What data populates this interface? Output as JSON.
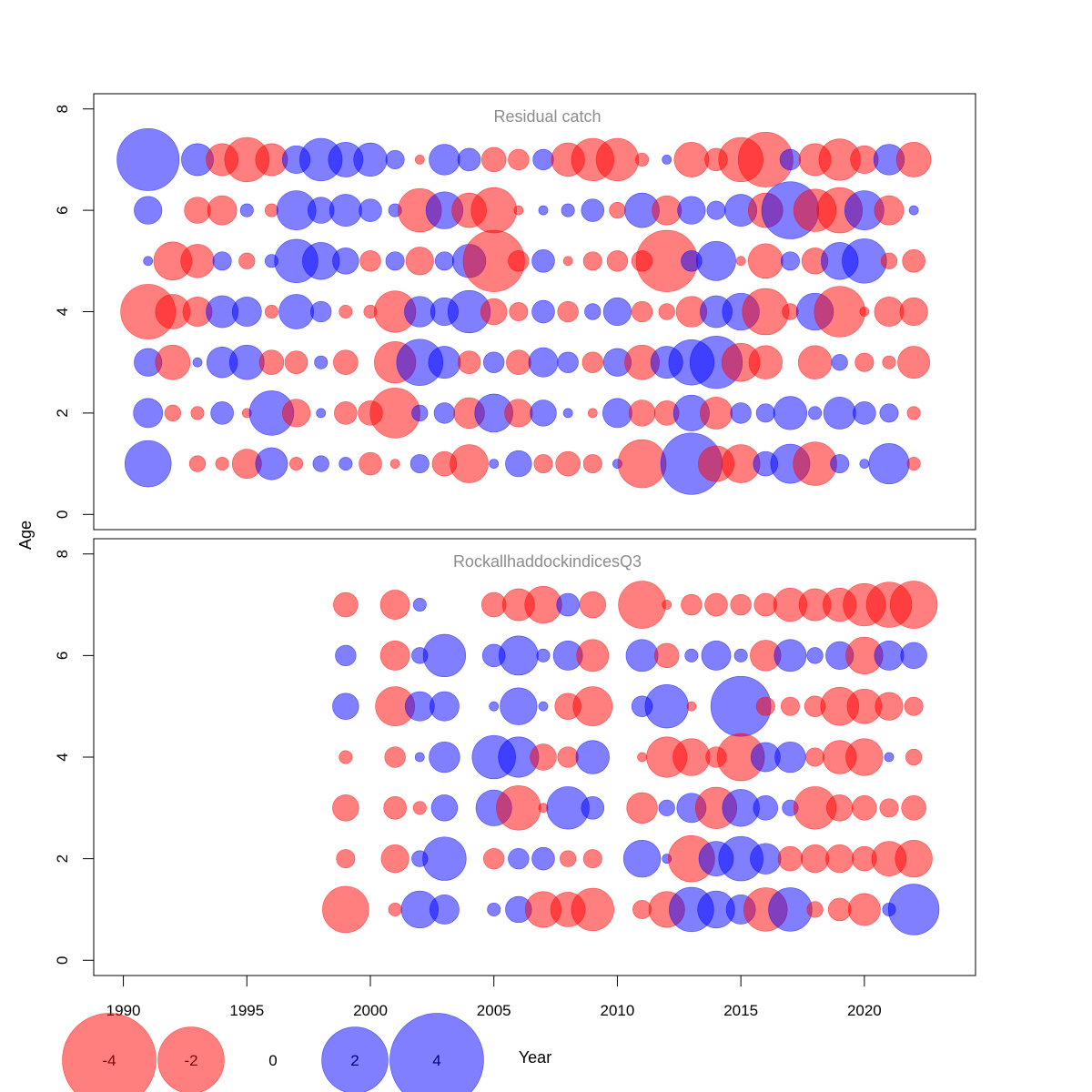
{
  "colors": {
    "negative": "#ff0000",
    "positive": "#0000ff",
    "bubble_opacity": 0.5,
    "panel_title": "#8c8c8c",
    "axis": "#000000"
  },
  "chart_data": {
    "type": "scatter",
    "subtype": "bubble",
    "xlabel": "Year",
    "ylabel": "Age",
    "xlim": [
      1988.8,
      2024.5
    ],
    "ylim": [
      -0.3,
      8.3
    ],
    "x_ticks": [
      1990,
      1995,
      2000,
      2005,
      2010,
      2015,
      2020
    ],
    "y_ticks": [
      0,
      2,
      4,
      6,
      8
    ],
    "legend": {
      "placement": "bottom",
      "entries": [
        {
          "label": "-4",
          "value": -4
        },
        {
          "label": "-2",
          "value": -2
        },
        {
          "label": "0",
          "value": 0
        },
        {
          "label": "2",
          "value": 2
        },
        {
          "label": "4",
          "value": 4
        }
      ],
      "xlabel_text": "Year"
    },
    "panels": [
      {
        "title": "Residual catch",
        "ages": [
          7,
          6,
          5,
          4,
          3,
          2,
          1
        ],
        "years": [
          1991,
          1992,
          1993,
          1994,
          1995,
          1996,
          1997,
          1998,
          1999,
          2000,
          2001,
          2002,
          2003,
          2004,
          2005,
          2006,
          2007,
          2008,
          2009,
          2010,
          2011,
          2012,
          2013,
          2014,
          2015,
          2016,
          2017,
          2018,
          2019,
          2020,
          2021,
          2022
        ],
        "residuals": [
          [
            4.5,
            0,
            1.2,
            -1.2,
            -2.3,
            -1.2,
            0.9,
            2.1,
            1.4,
            1.3,
            0.4,
            -0.1,
            1.1,
            0.6,
            -0.7,
            -0.5,
            0.5,
            -1.3,
            -2.1,
            -2.1,
            -0.2,
            0.1,
            -1.4,
            -0.6,
            -2.3,
            -3.5,
            0.5,
            -1.2,
            -2.0,
            -0.9,
            1.1,
            -1.4
          ],
          [
            0.9,
            0,
            -0.8,
            -1.0,
            0.2,
            -0.2,
            1.8,
            0.8,
            1.2,
            0.6,
            0.2,
            -2.2,
            1.6,
            -1.4,
            -2.4,
            -0.1,
            0.1,
            0.2,
            0.6,
            -0.3,
            1.4,
            -1.0,
            0.9,
            0.4,
            1.2,
            -1.4,
            3.8,
            -2.1,
            -2.4,
            1.8,
            -1.0,
            0.1
          ],
          [
            0.1,
            -1.7,
            -1.3,
            0.4,
            -0.3,
            0.2,
            2.2,
            1.6,
            0.8,
            -0.5,
            0.4,
            -0.9,
            0.4,
            1.3,
            -4.4,
            -0.5,
            0.6,
            -0.1,
            -0.4,
            -0.5,
            -0.5,
            -4.4,
            0.5,
            1.8,
            -0.1,
            -1.4,
            0.4,
            -0.8,
            1.6,
            2.3,
            -0.3,
            -0.6
          ],
          [
            -3.5,
            -1.4,
            -1.0,
            1.2,
            1.0,
            -0.2,
            1.4,
            0.5,
            -0.2,
            -0.2,
            -2.0,
            1.1,
            0.9,
            2.1,
            -0.8,
            -0.4,
            0.6,
            -0.5,
            0.3,
            0.9,
            -0.5,
            -0.3,
            -1.1,
            1.2,
            1.6,
            -2.5,
            -0.3,
            1.6,
            -3.0,
            -0.1,
            -1.0,
            -0.9
          ],
          [
            0.9,
            -1.4,
            0.1,
            1.1,
            1.4,
            -0.7,
            -0.6,
            0.2,
            -0.7,
            0.0,
            -2.0,
            2.5,
            1.2,
            -0.6,
            0.5,
            -0.7,
            1.0,
            0.5,
            -0.5,
            0.9,
            -1.4,
            1.2,
            2.4,
            3.2,
            -1.7,
            -1.3,
            0.0,
            -1.3,
            0.3,
            -0.4,
            -0.2,
            -1.2
          ],
          [
            1.0,
            -0.3,
            -0.2,
            0.6,
            -0.1,
            2.3,
            -0.9,
            0.1,
            -0.6,
            -0.7,
            -2.9,
            0.3,
            0.5,
            -1.1,
            1.7,
            -0.9,
            0.8,
            0.1,
            -0.1,
            1.0,
            -0.8,
            -0.7,
            1.5,
            -1.2,
            0.5,
            0.4,
            1.3,
            0.2,
            1.2,
            0.6,
            0.4,
            -0.2
          ],
          [
            2.5,
            0,
            -0.3,
            -0.2,
            -1.0,
            1.2,
            -0.2,
            0.3,
            0.2,
            -0.6,
            -0.1,
            0.4,
            -0.7,
            -1.7,
            0.1,
            0.8,
            -0.4,
            -0.7,
            -0.4,
            0.1,
            -2.7,
            0,
            4.4,
            -1.5,
            -1.7,
            0.7,
            1.8,
            -2.2,
            0.4,
            0.1,
            1.9,
            -0.2
          ]
        ]
      },
      {
        "title": "RockallhaddockindicesQ3",
        "ages": [
          7,
          6,
          5,
          4,
          3,
          2,
          1
        ],
        "years": [
          1999,
          2001,
          2002,
          2003,
          2005,
          2006,
          2007,
          2008,
          2009,
          2011,
          2012,
          2013,
          2014,
          2015,
          2016,
          2017,
          2018,
          2019,
          2020,
          2021,
          2022
        ],
        "residuals": [
          [
            -0.7,
            -1.0,
            0.2,
            0.0,
            -0.7,
            -1.2,
            -1.6,
            0.6,
            -0.8,
            -2.6,
            -0.1,
            -0.5,
            -0.6,
            -0.5,
            -0.6,
            -1.3,
            -1.2,
            -1.3,
            -2.1,
            -2.4,
            -2.6
          ],
          [
            0.5,
            -1.0,
            0.3,
            2.1,
            0.6,
            1.8,
            0.2,
            1.0,
            -1.2,
            1.2,
            -0.7,
            0.2,
            1.0,
            0.2,
            -1.1,
            1.2,
            0.3,
            0.9,
            -1.6,
            1.0,
            0.8
          ],
          [
            0.8,
            -1.8,
            1.0,
            1.0,
            0.1,
            1.6,
            0.1,
            -0.8,
            -1.8,
            0.5,
            2.2,
            -0.1,
            0.0,
            4.2,
            -0.4,
            -0.4,
            -0.5,
            -1.7,
            -1.4,
            -0.9,
            -0.4
          ],
          [
            -0.2,
            -0.5,
            0.1,
            1.1,
            2.2,
            1.9,
            -0.8,
            -0.5,
            1.3,
            -0.1,
            -1.9,
            -1.6,
            -0.5,
            -2.6,
            1.0,
            1.1,
            -0.4,
            -1.3,
            -1.6,
            0.1,
            -0.3
          ],
          [
            -0.8,
            -0.6,
            -0.2,
            0.8,
            1.5,
            -2.3,
            -0.1,
            2.1,
            0.6,
            -1.1,
            0.3,
            1.0,
            -2.0,
            1.6,
            0.7,
            0.3,
            -2.1,
            -0.8,
            -0.7,
            -0.4,
            -0.7
          ],
          [
            -0.4,
            -0.9,
            0.3,
            2.2,
            -0.5,
            0.5,
            0.6,
            -0.3,
            -0.4,
            1.6,
            0.1,
            -2.5,
            1.4,
            2.3,
            1.1,
            -0.7,
            -0.9,
            -0.9,
            -0.7,
            -1.4,
            -1.6
          ],
          [
            -2.5,
            -0.2,
            1.6,
            1.0,
            0.2,
            0.8,
            -1.5,
            -1.4,
            -2.1,
            -0.4,
            -1.5,
            2.3,
            1.6,
            1.0,
            -2.2,
            2.2,
            -0.3,
            -0.6,
            -1.2,
            0.2,
            3.0
          ]
        ]
      }
    ]
  }
}
